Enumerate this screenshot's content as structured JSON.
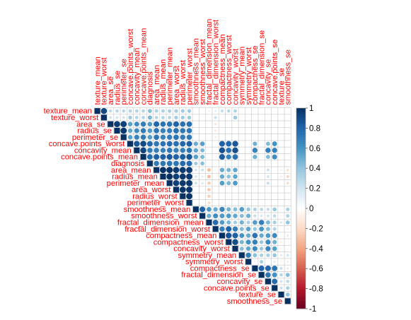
{
  "chart_data": {
    "type": "heatmap",
    "style": "upper-triangle correlation plot, circles sized and colored by correlation",
    "variables": [
      "texture_mean",
      "texture_worst",
      "area_se",
      "radius_se",
      "perimeter_se",
      "concave.points_worst",
      "concavity_mean",
      "concave.points_mean",
      "diagnosis",
      "area_mean",
      "radius_mean",
      "perimeter_mean",
      "area_worst",
      "radius_worst",
      "perimeter_worst",
      "smoothness_mean",
      "smoothness_worst",
      "fractal_dimension_mean",
      "fractal_dimension_worst",
      "compactness_mean",
      "compactness_worst",
      "concavity_worst",
      "symmetry_mean",
      "symmetry_worst",
      "compactness_se",
      "fractal_dimension_se",
      "concavity_se",
      "concave.points_se",
      "texture_se",
      "smoothness_se"
    ],
    "correlations": [
      [
        0,
        1,
        0.91
      ],
      [
        3,
        4,
        0.97
      ],
      [
        2,
        3,
        0.95
      ],
      [
        2,
        4,
        0.94
      ],
      [
        9,
        10,
        0.99
      ],
      [
        9,
        11,
        0.99
      ],
      [
        10,
        11,
        1.0
      ],
      [
        12,
        13,
        0.98
      ],
      [
        12,
        14,
        0.98
      ],
      [
        13,
        14,
        0.99
      ],
      [
        9,
        12,
        0.96
      ],
      [
        9,
        13,
        0.96
      ],
      [
        9,
        14,
        0.96
      ],
      [
        10,
        12,
        0.94
      ],
      [
        10,
        13,
        0.97
      ],
      [
        10,
        14,
        0.97
      ],
      [
        11,
        12,
        0.94
      ],
      [
        11,
        13,
        0.97
      ],
      [
        11,
        14,
        0.97
      ],
      [
        5,
        6,
        0.86
      ],
      [
        5,
        7,
        0.91
      ],
      [
        6,
        7,
        0.92
      ],
      [
        7,
        8,
        0.78
      ],
      [
        5,
        8,
        0.79
      ],
      [
        6,
        8,
        0.7
      ],
      [
        8,
        9,
        0.71
      ],
      [
        8,
        10,
        0.73
      ],
      [
        8,
        11,
        0.74
      ],
      [
        8,
        12,
        0.73
      ],
      [
        8,
        13,
        0.78
      ],
      [
        8,
        14,
        0.78
      ],
      [
        7,
        9,
        0.82
      ],
      [
        7,
        10,
        0.82
      ],
      [
        7,
        11,
        0.85
      ],
      [
        7,
        12,
        0.81
      ],
      [
        7,
        13,
        0.83
      ],
      [
        7,
        14,
        0.86
      ],
      [
        6,
        9,
        0.69
      ],
      [
        6,
        10,
        0.68
      ],
      [
        6,
        11,
        0.72
      ],
      [
        6,
        12,
        0.68
      ],
      [
        6,
        13,
        0.69
      ],
      [
        6,
        14,
        0.73
      ],
      [
        5,
        9,
        0.72
      ],
      [
        5,
        10,
        0.74
      ],
      [
        5,
        11,
        0.77
      ],
      [
        5,
        12,
        0.75
      ],
      [
        5,
        13,
        0.79
      ],
      [
        5,
        14,
        0.82
      ],
      [
        2,
        5,
        0.54
      ],
      [
        2,
        6,
        0.62
      ],
      [
        2,
        7,
        0.69
      ],
      [
        2,
        8,
        0.57
      ],
      [
        2,
        9,
        0.8
      ],
      [
        2,
        10,
        0.74
      ],
      [
        2,
        11,
        0.74
      ],
      [
        2,
        12,
        0.81
      ],
      [
        2,
        13,
        0.75
      ],
      [
        2,
        14,
        0.76
      ],
      [
        3,
        5,
        0.53
      ],
      [
        3,
        6,
        0.63
      ],
      [
        3,
        7,
        0.7
      ],
      [
        3,
        8,
        0.57
      ],
      [
        3,
        9,
        0.73
      ],
      [
        3,
        10,
        0.68
      ],
      [
        3,
        11,
        0.69
      ],
      [
        3,
        12,
        0.75
      ],
      [
        3,
        13,
        0.72
      ],
      [
        3,
        14,
        0.72
      ],
      [
        4,
        5,
        0.55
      ],
      [
        4,
        6,
        0.66
      ],
      [
        4,
        7,
        0.71
      ],
      [
        4,
        8,
        0.56
      ],
      [
        4,
        9,
        0.73
      ],
      [
        4,
        10,
        0.67
      ],
      [
        4,
        11,
        0.69
      ],
      [
        4,
        12,
        0.73
      ],
      [
        4,
        13,
        0.7
      ],
      [
        4,
        14,
        0.72
      ],
      [
        0,
        2,
        0.26
      ],
      [
        0,
        3,
        0.28
      ],
      [
        0,
        4,
        0.28
      ],
      [
        0,
        5,
        0.3
      ],
      [
        0,
        6,
        0.3
      ],
      [
        0,
        7,
        0.29
      ],
      [
        0,
        8,
        0.42
      ],
      [
        0,
        9,
        0.32
      ],
      [
        0,
        10,
        0.32
      ],
      [
        0,
        11,
        0.33
      ],
      [
        0,
        12,
        0.34
      ],
      [
        0,
        13,
        0.35
      ],
      [
        0,
        14,
        0.36
      ],
      [
        1,
        2,
        0.2
      ],
      [
        1,
        3,
        0.19
      ],
      [
        1,
        4,
        0.2
      ],
      [
        1,
        5,
        0.36
      ],
      [
        1,
        6,
        0.3
      ],
      [
        1,
        7,
        0.29
      ],
      [
        1,
        8,
        0.46
      ],
      [
        1,
        9,
        0.29
      ],
      [
        1,
        10,
        0.3
      ],
      [
        1,
        11,
        0.3
      ],
      [
        1,
        12,
        0.35
      ],
      [
        1,
        13,
        0.36
      ],
      [
        1,
        14,
        0.37
      ],
      [
        0,
        17,
        -0.08
      ],
      [
        0,
        18,
        0.12
      ],
      [
        0,
        19,
        0.24
      ],
      [
        0,
        20,
        0.28
      ],
      [
        0,
        21,
        0.3
      ],
      [
        1,
        18,
        0.22
      ],
      [
        1,
        21,
        0.37
      ],
      [
        15,
        16,
        0.81
      ],
      [
        15,
        17,
        0.58
      ],
      [
        15,
        18,
        0.5
      ],
      [
        15,
        19,
        0.66
      ],
      [
        15,
        20,
        0.47
      ],
      [
        15,
        21,
        0.43
      ],
      [
        15,
        22,
        0.56
      ],
      [
        15,
        23,
        0.39
      ],
      [
        15,
        24,
        0.32
      ],
      [
        15,
        25,
        0.28
      ],
      [
        15,
        26,
        0.25
      ],
      [
        15,
        27,
        0.38
      ],
      [
        15,
        28,
        0.07
      ],
      [
        15,
        29,
        0.33
      ],
      [
        16,
        17,
        0.5
      ],
      [
        16,
        18,
        0.62
      ],
      [
        16,
        19,
        0.57
      ],
      [
        16,
        20,
        0.57
      ],
      [
        16,
        21,
        0.52
      ],
      [
        16,
        22,
        0.43
      ],
      [
        16,
        23,
        0.49
      ],
      [
        16,
        24,
        0.23
      ],
      [
        16,
        25,
        0.17
      ],
      [
        16,
        26,
        0.2
      ],
      [
        16,
        27,
        0.27
      ],
      [
        16,
        28,
        -0.07
      ],
      [
        16,
        29,
        0.31
      ],
      [
        17,
        18,
        0.77
      ],
      [
        17,
        19,
        0.57
      ],
      [
        17,
        20,
        0.46
      ],
      [
        17,
        21,
        0.35
      ],
      [
        17,
        22,
        0.48
      ],
      [
        17,
        23,
        0.33
      ],
      [
        17,
        24,
        0.56
      ],
      [
        17,
        25,
        0.69
      ],
      [
        17,
        26,
        0.45
      ],
      [
        17,
        27,
        0.34
      ],
      [
        17,
        28,
        0.16
      ],
      [
        17,
        29,
        0.4
      ],
      [
        18,
        19,
        0.69
      ],
      [
        18,
        20,
        0.81
      ],
      [
        18,
        21,
        0.69
      ],
      [
        18,
        22,
        0.44
      ],
      [
        18,
        23,
        0.54
      ],
      [
        18,
        24,
        0.39
      ],
      [
        18,
        25,
        0.59
      ],
      [
        18,
        26,
        0.44
      ],
      [
        18,
        27,
        0.31
      ],
      [
        18,
        28,
        -0.05
      ],
      [
        18,
        29,
        0.1
      ],
      [
        19,
        20,
        0.87
      ],
      [
        19,
        21,
        0.82
      ],
      [
        19,
        22,
        0.6
      ],
      [
        19,
        23,
        0.51
      ],
      [
        19,
        24,
        0.74
      ],
      [
        19,
        25,
        0.51
      ],
      [
        19,
        26,
        0.57
      ],
      [
        19,
        27,
        0.64
      ],
      [
        19,
        28,
        0.05
      ],
      [
        19,
        29,
        0.14
      ],
      [
        20,
        21,
        0.89
      ],
      [
        20,
        22,
        0.47
      ],
      [
        20,
        23,
        0.61
      ],
      [
        20,
        24,
        0.68
      ],
      [
        20,
        25,
        0.39
      ],
      [
        20,
        26,
        0.64
      ],
      [
        20,
        27,
        0.48
      ],
      [
        20,
        28,
        -0.09
      ],
      [
        20,
        29,
        -0.06
      ],
      [
        21,
        22,
        0.43
      ],
      [
        21,
        23,
        0.53
      ],
      [
        21,
        24,
        0.64
      ],
      [
        21,
        25,
        0.38
      ],
      [
        21,
        26,
        0.66
      ],
      [
        21,
        27,
        0.55
      ],
      [
        21,
        28,
        -0.07
      ],
      [
        21,
        29,
        -0.06
      ],
      [
        22,
        23,
        0.7
      ],
      [
        22,
        24,
        0.42
      ],
      [
        22,
        25,
        0.33
      ],
      [
        22,
        26,
        0.34
      ],
      [
        22,
        27,
        0.39
      ],
      [
        22,
        28,
        0.13
      ],
      [
        22,
        29,
        0.19
      ],
      [
        23,
        24,
        0.06
      ],
      [
        23,
        25,
        0.33
      ],
      [
        23,
        26,
        0.04
      ],
      [
        23,
        27,
        0.14
      ],
      [
        23,
        28,
        -0.08
      ],
      [
        23,
        29,
        -0.11
      ],
      [
        24,
        25,
        0.8
      ],
      [
        24,
        26,
        0.8
      ],
      [
        24,
        27,
        0.74
      ],
      [
        24,
        28,
        0.23
      ],
      [
        24,
        29,
        0.14
      ],
      [
        25,
        26,
        0.73
      ],
      [
        25,
        27,
        0.61
      ],
      [
        25,
        28,
        0.28
      ],
      [
        25,
        29,
        0.43
      ],
      [
        26,
        27,
        0.77
      ],
      [
        26,
        28,
        0.19
      ],
      [
        26,
        29,
        0.27
      ],
      [
        27,
        28,
        0.23
      ],
      [
        27,
        29,
        0.33
      ],
      [
        28,
        29,
        0.4
      ],
      [
        2,
        18,
        -0.15
      ],
      [
        3,
        18,
        -0.13
      ],
      [
        4,
        18,
        -0.1
      ],
      [
        9,
        17,
        -0.31
      ],
      [
        10,
        17,
        -0.31
      ],
      [
        11,
        17,
        -0.26
      ],
      [
        12,
        17,
        -0.27
      ],
      [
        13,
        17,
        -0.25
      ],
      [
        14,
        17,
        -0.2
      ],
      [
        9,
        15,
        0.18
      ],
      [
        10,
        15,
        0.17
      ],
      [
        11,
        15,
        0.21
      ],
      [
        5,
        15,
        0.5
      ],
      [
        6,
        15,
        0.52
      ],
      [
        7,
        15,
        0.55
      ],
      [
        8,
        15,
        0.36
      ],
      [
        9,
        16,
        0.21
      ],
      [
        10,
        16,
        0.12
      ],
      [
        11,
        16,
        0.15
      ],
      [
        5,
        16,
        0.55
      ],
      [
        6,
        16,
        0.45
      ],
      [
        7,
        16,
        0.45
      ],
      [
        8,
        16,
        0.42
      ],
      [
        5,
        19,
        0.82
      ],
      [
        6,
        19,
        0.88
      ],
      [
        7,
        19,
        0.83
      ],
      [
        5,
        20,
        0.8
      ],
      [
        6,
        20,
        0.75
      ],
      [
        7,
        20,
        0.67
      ],
      [
        5,
        21,
        0.86
      ],
      [
        6,
        21,
        0.88
      ],
      [
        7,
        21,
        0.75
      ],
      [
        9,
        19,
        0.5
      ],
      [
        10,
        19,
        0.51
      ],
      [
        11,
        19,
        0.56
      ],
      [
        9,
        20,
        0.46
      ],
      [
        10,
        20,
        0.41
      ],
      [
        11,
        20,
        0.46
      ],
      [
        9,
        21,
        0.52
      ],
      [
        10,
        21,
        0.53
      ],
      [
        11,
        21,
        0.57
      ],
      [
        9,
        26,
        0.21
      ],
      [
        10,
        26,
        0.19
      ],
      [
        11,
        26,
        0.23
      ],
      [
        9,
        28,
        -0.1
      ],
      [
        10,
        28,
        -0.1
      ],
      [
        9,
        29,
        -0.17
      ],
      [
        10,
        29,
        -0.22
      ],
      [
        11,
        29,
        -0.2
      ],
      [
        5,
        24,
        0.48
      ],
      [
        6,
        24,
        0.67
      ],
      [
        7,
        24,
        0.49
      ],
      [
        5,
        26,
        0.44
      ],
      [
        6,
        26,
        0.69
      ],
      [
        7,
        26,
        0.44
      ],
      [
        5,
        27,
        0.6
      ],
      [
        6,
        27,
        0.68
      ],
      [
        7,
        27,
        0.62
      ]
    ],
    "colorbar": {
      "ticks": [
        "1",
        "0.8",
        "0.6",
        "0.4",
        "0.2",
        "0",
        "-0.2",
        "-0.4",
        "-0.6",
        "-0.8",
        "-1"
      ],
      "range": [
        -1,
        1
      ],
      "colors": [
        "#67001F",
        "#B2182B",
        "#D6604D",
        "#F4A582",
        "#FDDBC7",
        "#FFFFFF",
        "#D1E5F0",
        "#92C5DE",
        "#4393C3",
        "#2166AC",
        "#053061"
      ]
    },
    "label_color": "#FF0000",
    "grid_color": "#CCCCCC"
  }
}
